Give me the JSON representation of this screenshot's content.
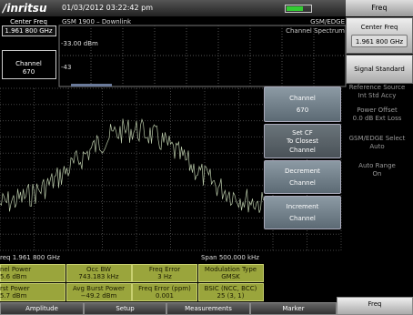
{
  "header": {
    "logo": "/inritsu",
    "datetime": "01/03/2012 03:22:42 pm",
    "menu_title": "Freq"
  },
  "left_panel": [
    {
      "label": "Center Freq",
      "value": "1.961 800 GHz"
    },
    {
      "label": "Channel",
      "value": "670"
    }
  ],
  "display": {
    "standard": "GSM 1900 – Downlink",
    "mode": "GSM/EDGE",
    "measurement": "Channel Spectrum",
    "ref_level": "-33.00 dBm",
    "scale_label": "-43",
    "footer_left": "req 1.961 800 GHz",
    "footer_right": "Span 500.000 kHz"
  },
  "popup_menu": [
    [
      "Channel",
      "670"
    ],
    [
      "Set CF",
      "To Closest",
      "Channel"
    ],
    [
      "Decrement",
      "Channel"
    ],
    [
      "Increment",
      "Channel"
    ]
  ],
  "settings": [
    [
      "Reference Source",
      "Int Std Accy"
    ],
    [
      "Power Offset",
      "0.0 dB Ext Loss"
    ],
    [
      "GSM/EDGE Select",
      "Auto"
    ],
    [
      "Auto Range",
      "On"
    ]
  ],
  "soft_keys": [
    {
      "label": "Center Freq",
      "value": "1.961 800 GHz"
    },
    {
      "label": "Signal Standard"
    }
  ],
  "results": [
    [
      [
        "nel Power",
        "5.6 dBm"
      ],
      [
        "Occ BW",
        "743.183 kHz"
      ],
      [
        "Freq Error",
        "3 Hz"
      ],
      [
        "Modulation Type",
        "GMSK"
      ]
    ],
    [
      [
        "rst Power",
        "5.7 dBm"
      ],
      [
        "Avg Burst Power",
        "−49.2 dBm"
      ],
      [
        "Freq Error (ppm)",
        "0.001"
      ],
      [
        "BSIC (NCC, BCC)",
        "25 (3, 1)"
      ]
    ]
  ],
  "tabs": [
    "Amplitude",
    "Setup",
    "Measurements",
    "Marker",
    "Freq"
  ]
}
